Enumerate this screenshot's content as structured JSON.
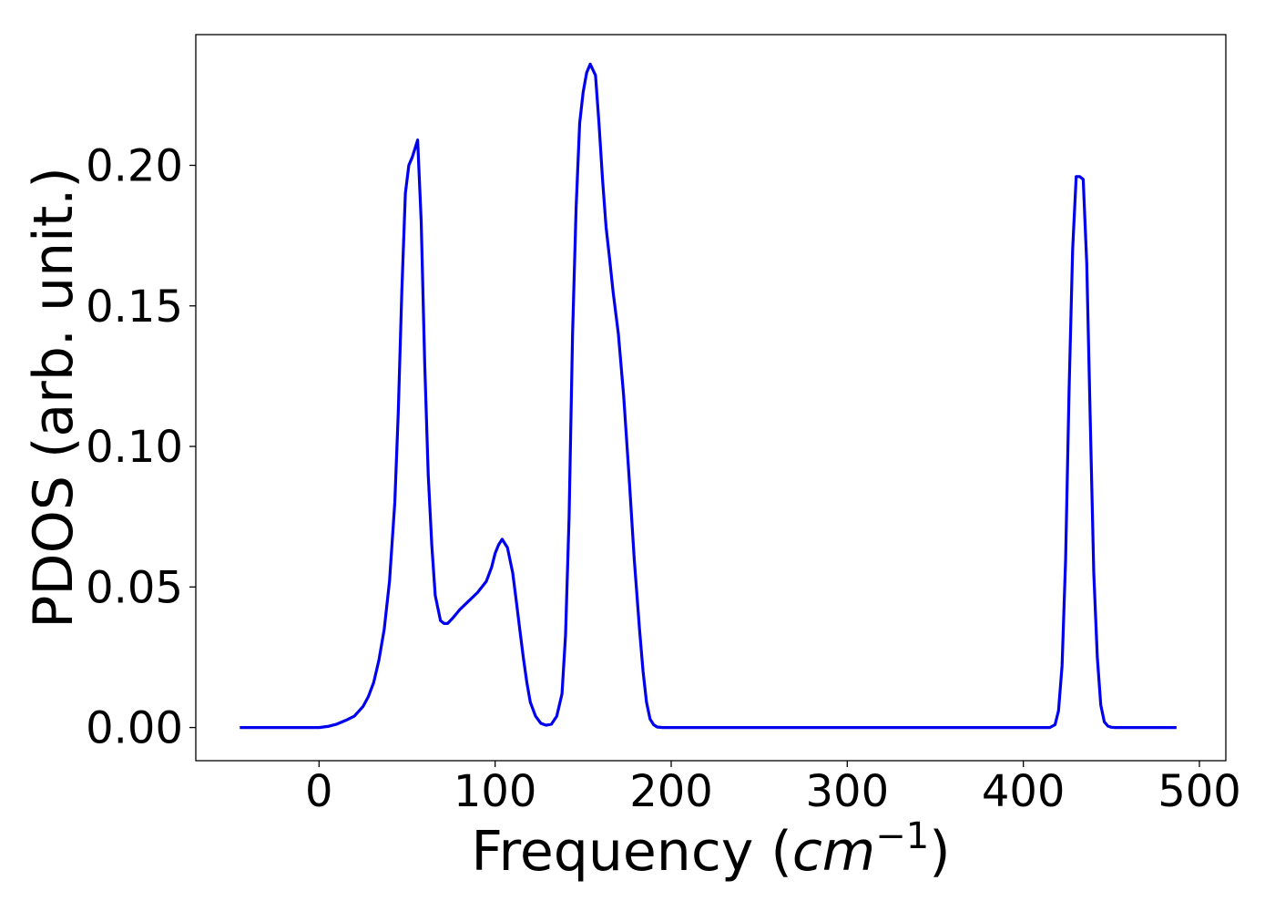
{
  "chart_data": {
    "type": "line",
    "xlabel_text": "Frequency (",
    "xlabel_math_base": "cm",
    "xlabel_math_exponent": "−1",
    "xlabel_close": ")",
    "ylabel": "PDOS (arb. unit.)",
    "xlim": [
      -70,
      515
    ],
    "ylim": [
      -0.0118,
      0.2465
    ],
    "x_ticks": [
      0,
      100,
      200,
      300,
      400,
      500
    ],
    "x_tick_labels": [
      "0",
      "100",
      "200",
      "300",
      "400",
      "500"
    ],
    "y_ticks": [
      0.0,
      0.05,
      0.1,
      0.15,
      0.2
    ],
    "y_tick_labels": [
      "0.00",
      "0.05",
      "0.10",
      "0.15",
      "0.20"
    ],
    "grid": false,
    "series": [
      {
        "color": "#0000ee",
        "x": [
          -45,
          -20,
          0,
          5,
          10,
          15,
          20,
          25,
          28,
          31,
          34,
          37,
          40,
          43,
          45,
          47,
          49,
          51,
          53,
          56,
          58,
          60,
          62,
          64,
          66,
          69,
          71,
          73,
          76,
          80,
          85,
          90,
          95,
          98,
          100,
          102,
          104,
          107,
          110,
          112,
          114,
          116,
          118,
          120,
          123,
          126,
          129,
          132,
          135,
          138,
          140,
          142,
          144,
          146,
          148,
          150,
          152,
          154,
          157,
          159,
          161,
          163,
          165,
          167,
          170,
          173,
          176,
          179,
          182,
          184,
          186,
          188,
          190,
          192,
          195,
          198,
          210,
          300,
          415,
          418,
          420,
          422,
          424,
          426,
          428,
          430,
          432,
          434,
          436,
          438,
          440,
          442,
          444,
          446,
          448,
          450,
          452,
          455,
          460,
          487
        ],
        "y": [
          0.0,
          0.0,
          0.0,
          0.0004,
          0.0012,
          0.0025,
          0.004,
          0.0075,
          0.011,
          0.016,
          0.024,
          0.035,
          0.052,
          0.08,
          0.112,
          0.155,
          0.19,
          0.2,
          0.203,
          0.209,
          0.18,
          0.13,
          0.09,
          0.065,
          0.047,
          0.038,
          0.037,
          0.037,
          0.039,
          0.042,
          0.045,
          0.048,
          0.052,
          0.057,
          0.062,
          0.065,
          0.067,
          0.064,
          0.055,
          0.045,
          0.035,
          0.025,
          0.016,
          0.009,
          0.004,
          0.0015,
          0.0008,
          0.0012,
          0.004,
          0.012,
          0.033,
          0.075,
          0.14,
          0.185,
          0.215,
          0.226,
          0.233,
          0.236,
          0.232,
          0.215,
          0.195,
          0.178,
          0.167,
          0.155,
          0.14,
          0.118,
          0.09,
          0.06,
          0.035,
          0.02,
          0.009,
          0.003,
          0.001,
          0.0002,
          0.0,
          0.0,
          0.0,
          0.0,
          0.0,
          0.001,
          0.006,
          0.022,
          0.06,
          0.12,
          0.17,
          0.196,
          0.196,
          0.195,
          0.165,
          0.11,
          0.055,
          0.025,
          0.008,
          0.002,
          0.0005,
          0.0001,
          0.0,
          0.0,
          0.0,
          0.0
        ]
      }
    ]
  }
}
